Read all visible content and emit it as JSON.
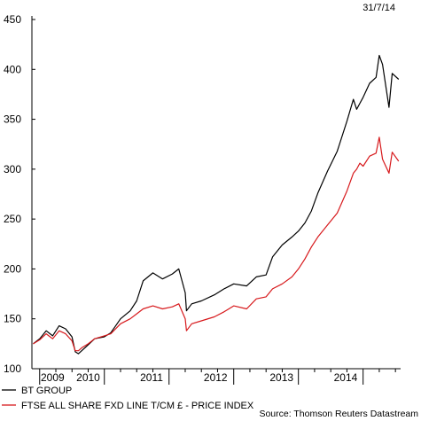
{
  "date_stamp": "31/7/14",
  "source": "Source: Thomson Reuters Datastream",
  "colors": {
    "bt": "#000000",
    "ftse": "#d7191c",
    "axis": "#000000",
    "background": "#ffffff"
  },
  "chart_data": {
    "type": "line",
    "title": "",
    "xlabel": "",
    "ylabel": "",
    "ylim": [
      100,
      450
    ],
    "xlim": [
      2008.88,
      2014.58
    ],
    "y_ticks": [
      100,
      150,
      200,
      250,
      300,
      350,
      400,
      450
    ],
    "x_tick_labels": [
      "2009",
      "2010",
      "2011",
      "2012",
      "2013",
      "2014"
    ],
    "x_label_positions": [
      2009.2,
      2009.75,
      2010.73,
      2011.72,
      2012.74,
      2013.73
    ],
    "grid": false,
    "legend_position": "bottom-left",
    "series": [
      {
        "name": "BT GROUP",
        "color": "#000000",
        "x": [
          2008.9,
          2009.0,
          2009.1,
          2009.2,
          2009.3,
          2009.4,
          2009.5,
          2009.55,
          2009.6,
          2009.65,
          2009.75,
          2009.85,
          2010.0,
          2010.1,
          2010.25,
          2010.4,
          2010.5,
          2010.6,
          2010.75,
          2010.9,
          2011.05,
          2011.15,
          2011.25,
          2011.27,
          2011.35,
          2011.5,
          2011.7,
          2011.85,
          2012.0,
          2012.2,
          2012.35,
          2012.5,
          2012.6,
          2012.75,
          2012.9,
          2013.0,
          2013.1,
          2013.2,
          2013.3,
          2013.45,
          2013.6,
          2013.75,
          2013.85,
          2013.9,
          2013.95,
          2014.0,
          2014.1,
          2014.2,
          2014.25,
          2014.3,
          2014.4,
          2014.45,
          2014.55
        ],
        "values": [
          125,
          130,
          138,
          133,
          143,
          140,
          132,
          117,
          115,
          118,
          124,
          130,
          132,
          136,
          150,
          158,
          168,
          188,
          196,
          190,
          195,
          200,
          176,
          158,
          165,
          168,
          174,
          180,
          185,
          183,
          192,
          194,
          212,
          224,
          232,
          238,
          246,
          258,
          276,
          298,
          318,
          348,
          370,
          360,
          366,
          372,
          386,
          392,
          414,
          405,
          362,
          396,
          390
        ]
      },
      {
        "name": "FTSE ALL SHARE FXD LINE T/CM £ - PRICE INDEX",
        "color": "#d7191c",
        "x": [
          2008.9,
          2009.0,
          2009.1,
          2009.2,
          2009.3,
          2009.4,
          2009.5,
          2009.55,
          2009.6,
          2009.65,
          2009.75,
          2009.85,
          2010.0,
          2010.1,
          2010.25,
          2010.4,
          2010.5,
          2010.6,
          2010.75,
          2010.9,
          2011.05,
          2011.15,
          2011.25,
          2011.27,
          2011.35,
          2011.5,
          2011.7,
          2011.85,
          2012.0,
          2012.2,
          2012.35,
          2012.5,
          2012.6,
          2012.75,
          2012.9,
          2013.0,
          2013.1,
          2013.2,
          2013.3,
          2013.45,
          2013.6,
          2013.75,
          2013.85,
          2013.9,
          2013.95,
          2014.0,
          2014.1,
          2014.2,
          2014.25,
          2014.3,
          2014.4,
          2014.45,
          2014.55
        ],
        "values": [
          125,
          129,
          135,
          130,
          138,
          135,
          128,
          118,
          118,
          121,
          125,
          130,
          133,
          135,
          145,
          150,
          155,
          160,
          163,
          160,
          162,
          165,
          150,
          138,
          145,
          148,
          152,
          157,
          163,
          160,
          170,
          172,
          180,
          185,
          192,
          200,
          210,
          222,
          232,
          244,
          256,
          278,
          296,
          300,
          306,
          303,
          313,
          316,
          332,
          310,
          296,
          317,
          308
        ]
      }
    ]
  }
}
